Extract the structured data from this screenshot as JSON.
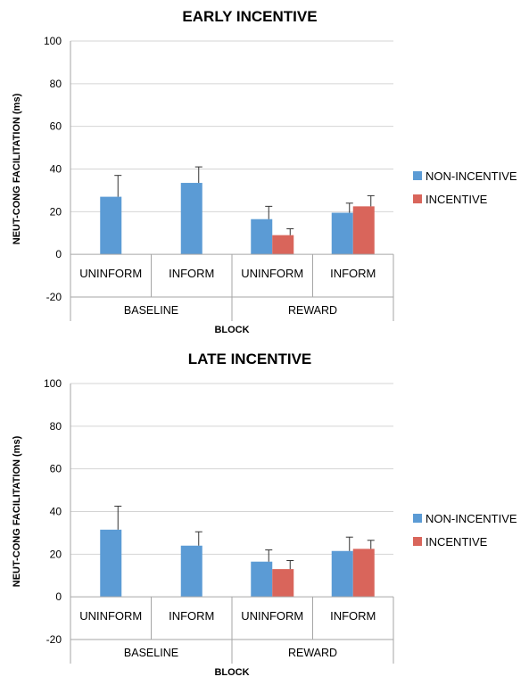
{
  "chart_data": [
    {
      "type": "bar",
      "title": "EARLY INCENTIVE",
      "xlabel": "BLOCK",
      "ylabel": "NEUT-CONG FACILITATION (ms)",
      "ylim": [
        -20,
        100
      ],
      "yticks": [
        -20,
        0,
        20,
        40,
        60,
        80,
        100
      ],
      "grid": true,
      "legend": "right",
      "groups": [
        {
          "label": "BASELINE",
          "categories": [
            "UNINFORM",
            "INFORM"
          ]
        },
        {
          "label": "REWARD",
          "categories": [
            "UNINFORM",
            "INFORM"
          ]
        }
      ],
      "categories": [
        "UNINFORM",
        "INFORM",
        "UNINFORM",
        "INFORM"
      ],
      "series": [
        {
          "name": "NON-INCENTIVE",
          "color": "#5b9bd5",
          "values": [
            27,
            33.5,
            16.5,
            19.5
          ],
          "errors": [
            10,
            7.5,
            6,
            4.5
          ]
        },
        {
          "name": "INCENTIVE",
          "color": "#d9655b",
          "values": [
            null,
            null,
            9,
            22.5
          ],
          "errors": [
            null,
            null,
            3,
            5
          ]
        }
      ]
    },
    {
      "type": "bar",
      "title": "LATE INCENTIVE",
      "xlabel": "BLOCK",
      "ylabel": "NEUT-CONG FACILITATION (ms)",
      "ylim": [
        -20,
        100
      ],
      "yticks": [
        -20,
        0,
        20,
        40,
        60,
        80,
        100
      ],
      "grid": true,
      "legend": "right",
      "groups": [
        {
          "label": "BASELINE",
          "categories": [
            "UNINFORM",
            "INFORM"
          ]
        },
        {
          "label": "REWARD",
          "categories": [
            "UNINFORM",
            "INFORM"
          ]
        }
      ],
      "categories": [
        "UNINFORM",
        "INFORM",
        "UNINFORM",
        "INFORM"
      ],
      "series": [
        {
          "name": "NON-INCENTIVE",
          "color": "#5b9bd5",
          "values": [
            31.5,
            24,
            16.5,
            21.5
          ],
          "errors": [
            11,
            6.5,
            5.5,
            6.5
          ]
        },
        {
          "name": "INCENTIVE",
          "color": "#d9655b",
          "values": [
            null,
            null,
            13,
            22.5
          ],
          "errors": [
            null,
            null,
            4,
            4
          ]
        }
      ]
    }
  ]
}
